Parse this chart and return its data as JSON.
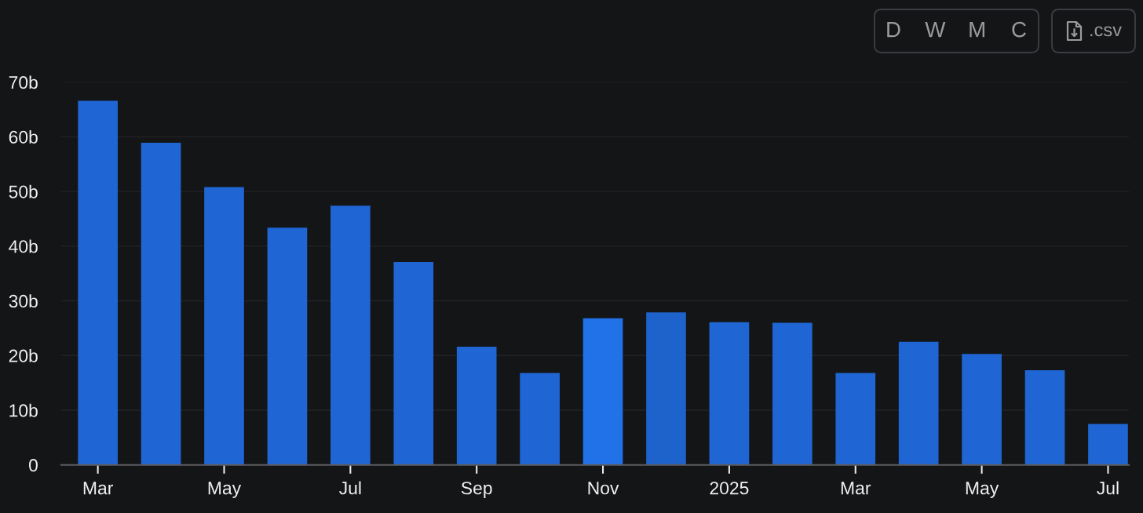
{
  "chart_data": {
    "type": "bar",
    "categories": [
      "Mar",
      null,
      "May",
      null,
      "Jul",
      null,
      "Sep",
      null,
      "Nov",
      null,
      "2025",
      null,
      "Mar",
      null,
      "May",
      null,
      "Jul"
    ],
    "values": [
      66.6,
      58.9,
      50.8,
      43.4,
      47.4,
      37.1,
      21.6,
      16.8,
      26.8,
      27.9,
      26.1,
      26.0,
      16.8,
      22.5,
      20.3,
      17.3,
      7.5
    ],
    "colors": [
      "#1f66d4",
      "#1f66d4",
      "#1f66d4",
      "#1f66d4",
      "#1f66d4",
      "#1f66d4",
      "#1f66d4",
      "#1f66d4",
      "#2171e8",
      "#1e63cc",
      "#1f66d4",
      "#1f66d4",
      "#1f66d4",
      "#1f66d4",
      "#1f66d4",
      "#1f66d4",
      "#1f66d4"
    ],
    "ylim": [
      0,
      70
    ],
    "yticks": [
      0,
      {
        "value": 10,
        "label": "10b"
      },
      {
        "value": 20,
        "label": "20b"
      },
      {
        "value": 30,
        "label": "30b"
      },
      {
        "value": 40,
        "label": "40b"
      },
      {
        "value": 50,
        "label": "50b"
      },
      {
        "value": 60,
        "label": "60b"
      },
      {
        "value": 70,
        "label": "70b"
      }
    ],
    "grid": "y",
    "annotations": [
      "D",
      "W",
      "M",
      "C",
      ".csv"
    ]
  }
}
